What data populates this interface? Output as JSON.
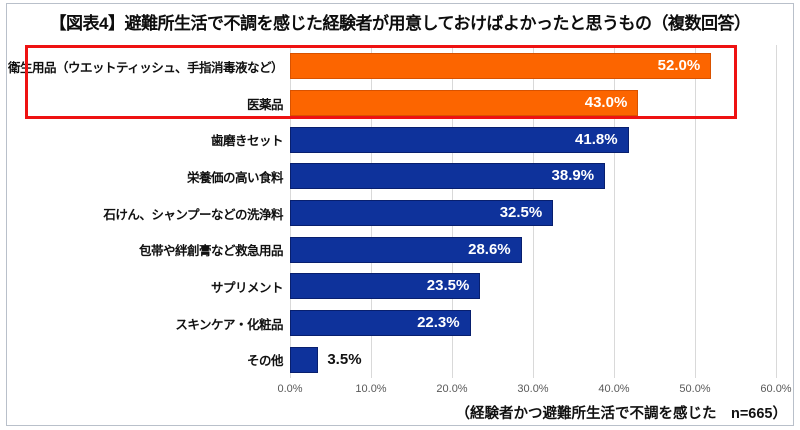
{
  "title": "【図表4】避難所生活で不調を感じた経験者が用意しておけばよかったと思うもの（複数回答）",
  "footnote": "（経験者かつ避難所生活で不調を感じた　n=665）",
  "chart_data": {
    "type": "bar",
    "orientation": "horizontal",
    "title": "【図表4】避難所生活で不調を感じた経験者が用意しておけばよかったと思うもの（複数回答）",
    "categories": [
      "衛生用品（ウエットティッシュ、手指消毒液など）",
      "医薬品",
      "歯磨きセット",
      "栄養価の高い食料",
      "石けん、シャンプーなどの洗浄料",
      "包帯や絆創膏など救急用品",
      "サプリメント",
      "スキンケア・化粧品",
      "その他"
    ],
    "values": [
      52.0,
      43.0,
      41.8,
      38.9,
      32.5,
      28.6,
      23.5,
      22.3,
      3.5
    ],
    "value_labels": [
      "52.0%",
      "43.0%",
      "41.8%",
      "38.9%",
      "32.5%",
      "28.6%",
      "23.5%",
      "22.3%",
      "3.5%"
    ],
    "xlim": [
      0,
      60
    ],
    "x_ticks": [
      "0.0%",
      "10.0%",
      "20.0%",
      "30.0%",
      "40.0%",
      "50.0%",
      "60.0%"
    ],
    "grid": true,
    "legend": false,
    "highlight_rows": [
      0,
      1
    ],
    "annotation": "red rectangle outlines the two highlighted (orange) bars"
  },
  "colors": {
    "bar_default": "#0e329b",
    "bar_highlight": "#fc6500",
    "highlight_border": "#ee1212",
    "gridline": "#d9d9d9",
    "tick_text": "#595959",
    "frame_border": "#b9c0ca"
  }
}
